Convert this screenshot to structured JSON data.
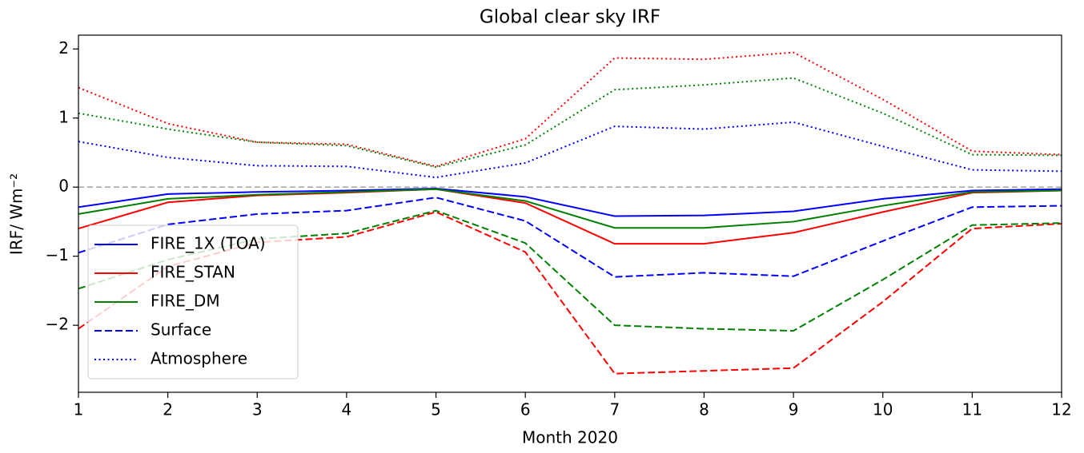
{
  "chart_data": {
    "type": "line",
    "title": "Global clear sky IRF",
    "xlabel": "Month 2020",
    "ylabel": "IRF/ Wm⁻²",
    "x": [
      1,
      2,
      3,
      4,
      5,
      6,
      7,
      8,
      9,
      10,
      11,
      12
    ],
    "xlim": [
      1,
      12
    ],
    "xticks": [
      1,
      2,
      3,
      4,
      5,
      6,
      7,
      8,
      9,
      10,
      11,
      12
    ],
    "ylim": [
      -2.97,
      2.2
    ],
    "yticks": [
      {
        "value": -2,
        "label": "−2"
      },
      {
        "value": -1,
        "label": "−1"
      },
      0,
      1,
      2
    ],
    "hline": 0,
    "hline_color": "#aaaaaa",
    "legend": "lower left",
    "series": [
      {
        "name": "FIRE_1X (TOA)",
        "color": "#0000ff",
        "style": "solid",
        "values": [
          -0.29,
          -0.1,
          -0.07,
          -0.05,
          -0.02,
          -0.14,
          -0.42,
          -0.41,
          -0.35,
          -0.17,
          -0.05,
          -0.03
        ]
      },
      {
        "name": "FIRE_STAN",
        "color": "#ff0000",
        "style": "solid",
        "values": [
          -0.6,
          -0.22,
          -0.12,
          -0.08,
          -0.03,
          -0.23,
          -0.82,
          -0.82,
          -0.66,
          -0.36,
          -0.08,
          -0.05
        ]
      },
      {
        "name": "FIRE_DM",
        "color": "#008000",
        "style": "solid",
        "values": [
          -0.39,
          -0.17,
          -0.11,
          -0.07,
          -0.03,
          -0.2,
          -0.59,
          -0.59,
          -0.5,
          -0.27,
          -0.07,
          -0.05
        ]
      },
      {
        "name": "Surface",
        "color": "#0000ff",
        "style": "dashed",
        "values": [
          -0.95,
          -0.54,
          -0.39,
          -0.34,
          -0.15,
          -0.49,
          -1.3,
          -1.24,
          -1.29,
          -0.78,
          -0.29,
          -0.27
        ]
      },
      {
        "color": "#ff0000",
        "style": "dashed",
        "values": [
          -2.05,
          -1.15,
          -0.8,
          -0.72,
          -0.36,
          -0.94,
          -2.7,
          -2.66,
          -2.62,
          -1.66,
          -0.6,
          -0.53
        ]
      },
      {
        "color": "#008000",
        "style": "dashed",
        "values": [
          -1.47,
          -1.05,
          -0.75,
          -0.67,
          -0.34,
          -0.81,
          -2.0,
          -2.05,
          -2.08,
          -1.34,
          -0.55,
          -0.52
        ]
      },
      {
        "name": "Atmosphere",
        "color": "#0000ff",
        "style": "dotted",
        "values": [
          0.66,
          0.43,
          0.31,
          0.3,
          0.14,
          0.35,
          0.88,
          0.84,
          0.94,
          0.59,
          0.25,
          0.23
        ]
      },
      {
        "color": "#ff0000",
        "style": "dotted",
        "values": [
          1.44,
          0.92,
          0.65,
          0.62,
          0.3,
          0.7,
          1.87,
          1.85,
          1.95,
          1.27,
          0.52,
          0.47
        ]
      },
      {
        "color": "#008000",
        "style": "dotted",
        "values": [
          1.07,
          0.84,
          0.65,
          0.6,
          0.29,
          0.61,
          1.41,
          1.48,
          1.58,
          1.07,
          0.47,
          0.46
        ]
      }
    ]
  }
}
